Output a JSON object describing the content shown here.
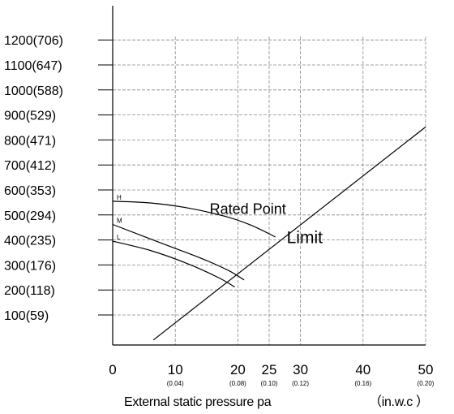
{
  "chart_data": {
    "type": "line",
    "title": "",
    "xlabel": "External static pressure pa",
    "xunit_label": "（in.w.c ）",
    "x_ticks": [
      "0",
      "10",
      "20",
      "25",
      "30",
      "40",
      "50"
    ],
    "x_tick_values": [
      0,
      10,
      20,
      25,
      30,
      40,
      50
    ],
    "x_subticks": [
      "(0.04)",
      "(0.08)",
      "(0.10)",
      "(0.12)",
      "(0.16)",
      "(0.20)"
    ],
    "x_subtick_values": [
      10,
      20,
      25,
      30,
      40,
      50
    ],
    "y_ticks": [
      "100(59)",
      "200(118)",
      "300(176)",
      "400(235)",
      "500(294)",
      "600(353)",
      "700(412)",
      "800(471)",
      "900(529)",
      "1000(588)",
      "1100(647)",
      "1200(706)"
    ],
    "y_tick_values": [
      100,
      200,
      300,
      400,
      500,
      600,
      700,
      800,
      900,
      1000,
      1100,
      1200
    ],
    "xlim": [
      0,
      50
    ],
    "ylim": [
      0,
      1250
    ],
    "grid": true,
    "series": [
      {
        "key": "H",
        "name": "H",
        "points": [
          [
            0,
            555
          ],
          [
            6,
            548
          ],
          [
            12,
            528
          ],
          [
            18,
            494
          ],
          [
            22,
            460
          ],
          [
            26,
            412
          ]
        ]
      },
      {
        "key": "M",
        "name": "M",
        "points": [
          [
            0,
            462
          ],
          [
            8,
            385
          ],
          [
            14,
            328
          ],
          [
            18.5,
            278
          ],
          [
            21,
            240
          ]
        ]
      },
      {
        "key": "L",
        "name": "L",
        "points": [
          [
            0,
            395
          ],
          [
            6,
            358
          ],
          [
            12,
            305
          ],
          [
            17,
            248
          ],
          [
            19.5,
            212
          ]
        ]
      },
      {
        "key": "limit",
        "name": "",
        "points": [
          [
            6.5,
            0
          ],
          [
            50,
            852
          ]
        ]
      }
    ],
    "annotations": [
      {
        "key": "rated",
        "text": "Rated Point",
        "x": 15.5,
        "y": 505
      },
      {
        "key": "limit",
        "text": "Limit",
        "x": 27.8,
        "y": 388
      }
    ]
  }
}
